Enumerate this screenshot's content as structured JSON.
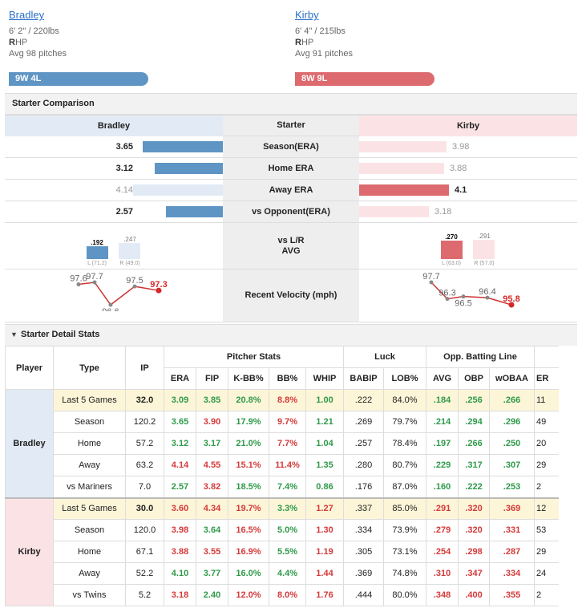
{
  "home": {
    "name": "Bradley",
    "size": "6' 2\" / 220lbs",
    "hand_bold": "R",
    "hand_rest": "HP",
    "avg": "Avg 98 pitches",
    "record": "9W 4L"
  },
  "away": {
    "name": "Kirby",
    "size": "6' 4\" / 215lbs",
    "hand_bold": "R",
    "hand_rest": "HP",
    "avg": "Avg 91 pitches",
    "record": "8W 9L"
  },
  "comparison": {
    "title": "Starter Comparison",
    "left_head": "Bradley",
    "mid_head": "Starter",
    "right_head": "Kirby",
    "rows": [
      {
        "label": "Season(ERA)",
        "left": "3.65",
        "right": "3.98",
        "left_frac": 0.89,
        "right_frac": 0.97,
        "winner": "left"
      },
      {
        "label": "Home ERA",
        "left": "3.12",
        "right": "3.88",
        "left_frac": 0.76,
        "right_frac": 0.95,
        "winner": "left"
      },
      {
        "label": "Away ERA",
        "left": "4.14",
        "right": "4.1",
        "left_frac": 1.0,
        "right_frac": 1.0,
        "winner": "right"
      },
      {
        "label": "vs Opponent(ERA)",
        "left": "2.57",
        "right": "3.18",
        "left_frac": 0.63,
        "right_frac": 0.78,
        "winner": "left"
      }
    ],
    "lr_label_1": "vs L/R",
    "lr_label_2": "AVG",
    "left_lr": {
      "l": ".192",
      "r": ".247",
      "l_sub": "L (71.2)",
      "r_sub": "R (49.0)"
    },
    "right_lr": {
      "l": ".270",
      "r": ".291",
      "l_sub": "L (63.0)",
      "r_sub": "R (57.0)"
    },
    "velo_label": "Recent Velocity (mph)",
    "left_velo": [
      "97.6",
      "97.7",
      "96.6",
      "97.5",
      "97.3"
    ],
    "right_velo": [
      "97.7",
      "96.3",
      "96.5",
      "96.4",
      "95.8"
    ]
  },
  "detail": {
    "title": "Starter Detail Stats",
    "h_player": "Player",
    "h_type": "Type",
    "h_ip": "IP",
    "g_pitcher": "Pitcher Stats",
    "g_luck": "Luck",
    "g_opp": "Opp. Batting Line",
    "cols": [
      "ERA",
      "FIP",
      "K-BB%",
      "BB%",
      "WHIP",
      "BABIP",
      "LOB%",
      "AVG",
      "OBP",
      "wOBAA",
      "ER"
    ],
    "players": [
      {
        "name": "Bradley",
        "rows": [
          {
            "type": "Last 5 Games",
            "ip": "32.0",
            "v": [
              "3.09",
              "3.85",
              "20.8%",
              "8.8%",
              "1.00",
              ".222",
              "84.0%",
              ".184",
              ".256",
              ".266",
              "11"
            ],
            "c": [
              "g",
              "g",
              "g",
              "r",
              "g",
              "",
              "",
              "g",
              "g",
              "g",
              ""
            ]
          },
          {
            "type": "Season",
            "ip": "120.2",
            "v": [
              "3.65",
              "3.90",
              "17.9%",
              "9.7%",
              "1.21",
              ".269",
              "79.7%",
              ".214",
              ".294",
              ".296",
              "49"
            ],
            "c": [
              "g",
              "r",
              "g",
              "r",
              "g",
              "",
              "",
              "g",
              "g",
              "g",
              ""
            ]
          },
          {
            "type": "Home",
            "ip": "57.2",
            "v": [
              "3.12",
              "3.17",
              "21.0%",
              "7.7%",
              "1.04",
              ".257",
              "78.4%",
              ".197",
              ".266",
              ".250",
              "20"
            ],
            "c": [
              "g",
              "g",
              "g",
              "r",
              "g",
              "",
              "",
              "g",
              "g",
              "g",
              ""
            ]
          },
          {
            "type": "Away",
            "ip": "63.2",
            "v": [
              "4.14",
              "4.55",
              "15.1%",
              "11.4%",
              "1.35",
              ".280",
              "80.7%",
              ".229",
              ".317",
              ".307",
              "29"
            ],
            "c": [
              "r",
              "r",
              "r",
              "r",
              "g",
              "",
              "",
              "g",
              "g",
              "g",
              ""
            ]
          },
          {
            "type": "vs Mariners",
            "ip": "7.0",
            "v": [
              "2.57",
              "3.82",
              "18.5%",
              "7.4%",
              "0.86",
              ".176",
              "87.0%",
              ".160",
              ".222",
              ".253",
              "2"
            ],
            "c": [
              "g",
              "r",
              "g",
              "g",
              "g",
              "",
              "",
              "g",
              "g",
              "g",
              ""
            ]
          }
        ]
      },
      {
        "name": "Kirby",
        "rows": [
          {
            "type": "Last 5 Games",
            "ip": "30.0",
            "v": [
              "3.60",
              "4.34",
              "19.7%",
              "3.3%",
              "1.27",
              ".337",
              "85.0%",
              ".291",
              ".320",
              ".369",
              "12"
            ],
            "c": [
              "r",
              "r",
              "r",
              "g",
              "r",
              "",
              "",
              "r",
              "r",
              "r",
              ""
            ]
          },
          {
            "type": "Season",
            "ip": "120.0",
            "v": [
              "3.98",
              "3.64",
              "16.5%",
              "5.0%",
              "1.30",
              ".334",
              "73.9%",
              ".279",
              ".320",
              ".331",
              "53"
            ],
            "c": [
              "r",
              "g",
              "r",
              "g",
              "r",
              "",
              "",
              "r",
              "r",
              "r",
              ""
            ]
          },
          {
            "type": "Home",
            "ip": "67.1",
            "v": [
              "3.88",
              "3.55",
              "16.9%",
              "5.5%",
              "1.19",
              ".305",
              "73.1%",
              ".254",
              ".298",
              ".287",
              "29"
            ],
            "c": [
              "r",
              "r",
              "r",
              "g",
              "r",
              "",
              "",
              "r",
              "r",
              "r",
              ""
            ]
          },
          {
            "type": "Away",
            "ip": "52.2",
            "v": [
              "4.10",
              "3.77",
              "16.0%",
              "4.4%",
              "1.44",
              ".369",
              "74.8%",
              ".310",
              ".347",
              ".334",
              "24"
            ],
            "c": [
              "g",
              "g",
              "g",
              "g",
              "r",
              "",
              "",
              "r",
              "r",
              "r",
              ""
            ]
          },
          {
            "type": "vs Twins",
            "ip": "5.2",
            "v": [
              "3.18",
              "2.40",
              "12.0%",
              "8.0%",
              "1.76",
              ".444",
              "80.0%",
              ".348",
              ".400",
              ".355",
              "2"
            ],
            "c": [
              "r",
              "g",
              "r",
              "r",
              "r",
              "",
              "",
              "r",
              "r",
              "r",
              ""
            ]
          }
        ]
      }
    ]
  },
  "colors": {
    "blue": "#5f95c4",
    "blue_light": "#e2ebf5",
    "red": "#dd6a6e",
    "red_light": "#fbe3e5"
  }
}
